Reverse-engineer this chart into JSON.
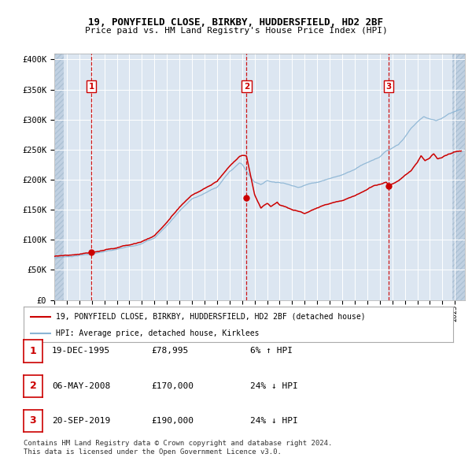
{
  "title_line1": "19, PONYFIELD CLOSE, BIRKBY, HUDDERSFIELD, HD2 2BF",
  "title_line2": "Price paid vs. HM Land Registry's House Price Index (HPI)",
  "background_color": "#ffffff",
  "plot_bg_color": "#dce6f1",
  "grid_color": "#ffffff",
  "hatch_color": "#b0c4d8",
  "red_line_color": "#cc0000",
  "blue_line_color": "#8ab4d4",
  "marker_color": "#cc0000",
  "vline_color": "#cc0000",
  "transaction_labels": [
    "1",
    "2",
    "3"
  ],
  "transaction_dates": [
    1995.96,
    2008.35,
    2019.72
  ],
  "transaction_prices": [
    78995,
    170000,
    190000
  ],
  "transaction_date_strs": [
    "19-DEC-1995",
    "06-MAY-2008",
    "20-SEP-2019"
  ],
  "transaction_price_strs": [
    "£78,995",
    "£170,000",
    "£190,000"
  ],
  "transaction_hpi_strs": [
    "6% ↑ HPI",
    "24% ↓ HPI",
    "24% ↓ HPI"
  ],
  "ylim": [
    0,
    410000
  ],
  "xlim_start": 1993.0,
  "xlim_end": 2025.8,
  "legend_line1": "19, PONYFIELD CLOSE, BIRKBY, HUDDERSFIELD, HD2 2BF (detached house)",
  "legend_line2": "HPI: Average price, detached house, Kirklees",
  "footnote_line1": "Contains HM Land Registry data © Crown copyright and database right 2024.",
  "footnote_line2": "This data is licensed under the Open Government Licence v3.0.",
  "yticks": [
    0,
    50000,
    100000,
    150000,
    200000,
    250000,
    300000,
    350000,
    400000
  ],
  "ytick_labels": [
    "£0",
    "£50K",
    "£100K",
    "£150K",
    "£200K",
    "£250K",
    "£300K",
    "£350K",
    "£400K"
  ]
}
